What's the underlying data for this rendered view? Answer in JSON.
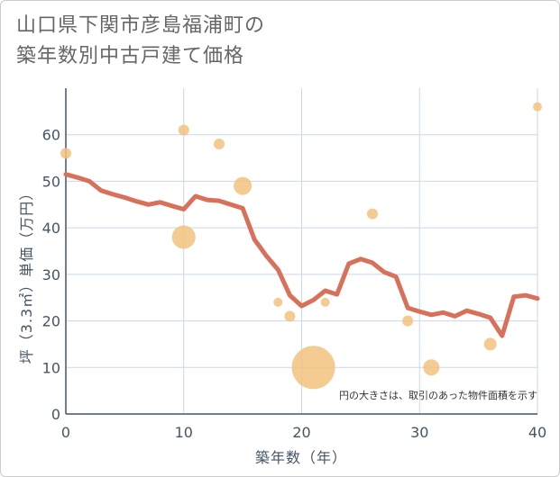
{
  "title_lines": [
    "山口県下関市彦島福浦町の",
    "築年数別中古戸建て価格"
  ],
  "chart_data": {
    "type": "scatter+line",
    "title": "山口県下関市彦島福浦町の築年数別中古戸建て価格",
    "xlabel": "築年数（年）",
    "ylabel": "坪（3.3㎡）単価（万円）",
    "xlim": [
      0,
      40
    ],
    "ylim": [
      0,
      70
    ],
    "xticks": [
      0,
      10,
      20,
      30,
      40
    ],
    "yticks": [
      0,
      10,
      20,
      30,
      40,
      50,
      60
    ],
    "grid": true,
    "note": "円の大きさは、取引のあった物件面積を示す",
    "line_color": "#d9705a",
    "bubble_color": "#f2c27e",
    "line": {
      "x": [
        0,
        1,
        2,
        3,
        4,
        5,
        6,
        7,
        8,
        9,
        10,
        11,
        12,
        13,
        14,
        15,
        16,
        17,
        18,
        19,
        20,
        21,
        22,
        23,
        24,
        25,
        26,
        27,
        28,
        29,
        30,
        31,
        32,
        33,
        34,
        35,
        36,
        37,
        38,
        39,
        40
      ],
      "y": [
        51.5,
        50.8,
        50.0,
        48.0,
        47.2,
        46.5,
        45.7,
        45.0,
        45.5,
        44.7,
        44.0,
        46.8,
        46.0,
        45.8,
        45.0,
        44.2,
        37.5,
        34.0,
        31.0,
        25.5,
        23.2,
        24.5,
        26.5,
        25.7,
        32.3,
        33.3,
        32.5,
        30.5,
        29.5,
        22.8,
        22.0,
        21.3,
        21.8,
        21.0,
        22.2,
        21.5,
        20.7,
        16.8,
        25.2,
        25.5,
        24.8
      ]
    },
    "bubbles": [
      {
        "x": 0,
        "y": 56,
        "size": 6
      },
      {
        "x": 10,
        "y": 61,
        "size": 6
      },
      {
        "x": 10,
        "y": 38,
        "size": 13
      },
      {
        "x": 13,
        "y": 58,
        "size": 6
      },
      {
        "x": 15,
        "y": 49,
        "size": 10
      },
      {
        "x": 18,
        "y": 24,
        "size": 5
      },
      {
        "x": 19,
        "y": 21,
        "size": 6
      },
      {
        "x": 21,
        "y": 10,
        "size": 24
      },
      {
        "x": 22,
        "y": 24,
        "size": 5
      },
      {
        "x": 26,
        "y": 43,
        "size": 6
      },
      {
        "x": 29,
        "y": 20,
        "size": 6
      },
      {
        "x": 31,
        "y": 10,
        "size": 9
      },
      {
        "x": 36,
        "y": 15,
        "size": 7
      },
      {
        "x": 40,
        "y": 66,
        "size": 5
      }
    ]
  }
}
